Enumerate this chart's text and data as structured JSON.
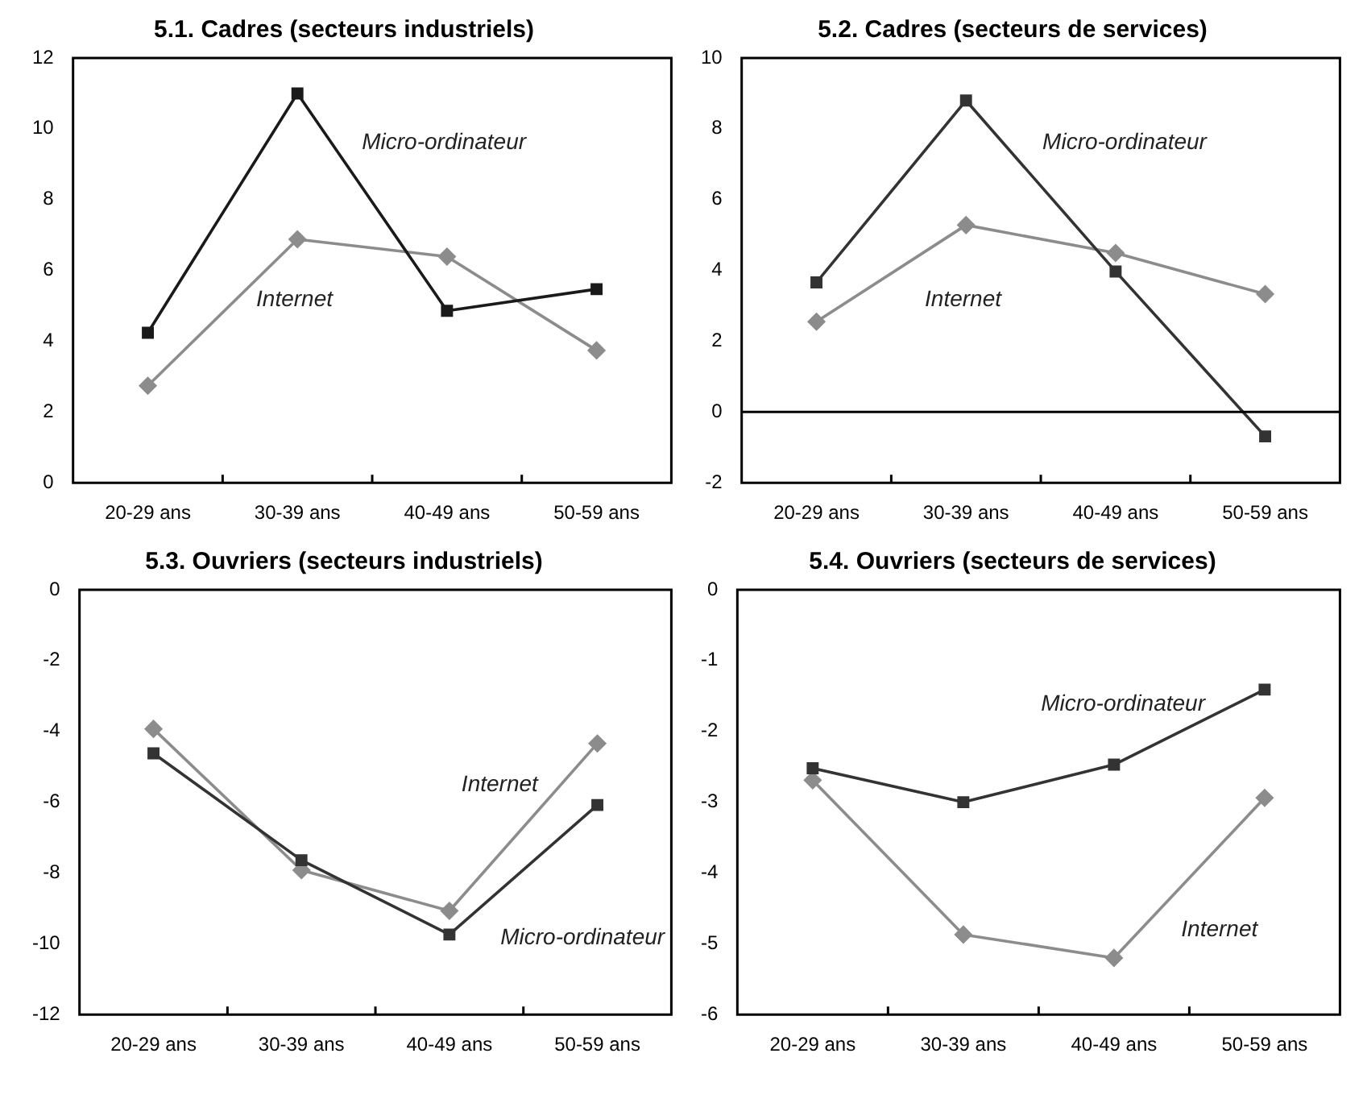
{
  "chart_data": [
    {
      "type": "line",
      "title": "5.1. Cadres (secteurs industriels)",
      "categories": [
        "20-29 ans",
        "30-39 ans",
        "40-49 ans",
        "50-59 ans"
      ],
      "ylim": [
        0,
        12
      ],
      "yticks": [
        0,
        2,
        4,
        6,
        8,
        10,
        12
      ],
      "grid": false,
      "legend": false,
      "series": [
        {
          "name": "Micro-ordinateur",
          "color": "#1a1a1a",
          "marker": "square",
          "values": [
            4.24,
            11.0,
            4.86,
            5.47
          ]
        },
        {
          "name": "Internet",
          "color": "#8c8c8c",
          "marker": "diamond",
          "values": [
            2.74,
            6.88,
            6.39,
            3.74
          ]
        }
      ]
    },
    {
      "type": "line",
      "title": "5.2. Cadres (secteurs de services)",
      "categories": [
        "20-29 ans",
        "30-39 ans",
        "40-49 ans",
        "50-59 ans"
      ],
      "ylim": [
        -2,
        10
      ],
      "yticks": [
        -2,
        0,
        2,
        4,
        6,
        8,
        10
      ],
      "grid": false,
      "legend": false,
      "ref_lines": [
        {
          "axis": "y",
          "value": 0,
          "color": "#000000"
        }
      ],
      "series": [
        {
          "name": "Micro-ordinateur",
          "color": "#333333",
          "marker": "square",
          "values": [
            3.66,
            8.8,
            3.97,
            -0.69
          ]
        },
        {
          "name": "Internet",
          "color": "#8c8c8c",
          "marker": "diamond",
          "values": [
            2.55,
            5.28,
            4.49,
            3.33
          ]
        }
      ]
    },
    {
      "type": "line",
      "title": "5.3. Ouvriers (secteurs industriels)",
      "categories": [
        "20-29 ans",
        "30-39 ans",
        "40-49 ans",
        "50-59 ans"
      ],
      "ylim": [
        -12,
        0
      ],
      "yticks": [
        -12,
        -10,
        -8,
        -6,
        -4,
        -2,
        0
      ],
      "grid": false,
      "legend": false,
      "series": [
        {
          "name": "Micro-ordinateur",
          "color": "#333333",
          "marker": "square",
          "values": [
            -4.62,
            -7.64,
            -9.74,
            -6.08
          ]
        },
        {
          "name": "Internet",
          "color": "#8c8c8c",
          "marker": "diamond",
          "values": [
            -3.93,
            -7.92,
            -9.07,
            -4.34
          ]
        }
      ]
    },
    {
      "type": "line",
      "title": "5.4. Ouvriers (secteurs de services)",
      "categories": [
        "20-29 ans",
        "30-39 ans",
        "40-49 ans",
        "50-59 ans"
      ],
      "ylim": [
        -6,
        0
      ],
      "yticks": [
        -6,
        -5,
        -4,
        -3,
        -2,
        -1,
        0
      ],
      "grid": false,
      "legend": false,
      "series": [
        {
          "name": "Micro-ordinateur",
          "color": "#333333",
          "marker": "square",
          "values": [
            -2.52,
            -3.0,
            -2.47,
            -1.41
          ]
        },
        {
          "name": "Internet",
          "color": "#8c8c8c",
          "marker": "diamond",
          "values": [
            -2.69,
            -4.87,
            -5.2,
            -2.94
          ]
        }
      ]
    }
  ]
}
